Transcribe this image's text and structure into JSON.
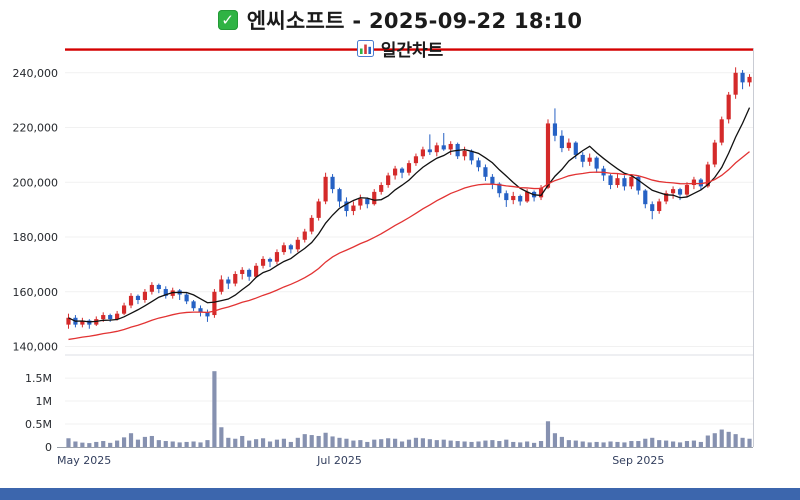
{
  "header": {
    "check_glyph": "✓",
    "title": "엔씨소프트 - 2025-09-22 18:10",
    "subtitle": "일간차트"
  },
  "status_bar": {
    "color": "#3c66ad"
  },
  "chart_data": {
    "type": "candlestick",
    "title": "엔씨소프트 - 2025-09-22 18:10",
    "subtitle": "일간차트",
    "symbol": "엔씨소프트",
    "timestamp": "2025-09-22 18:10",
    "period": "daily",
    "grid": true,
    "legend_position": "none",
    "ylim": [
      138000,
      246500
    ],
    "volume_ylim": [
      0,
      1850000
    ],
    "top_line_price": 248500,
    "y_ticks": [
      {
        "value": 240000,
        "label": "240,000"
      },
      {
        "value": 220000,
        "label": "220,000"
      },
      {
        "value": 200000,
        "label": "200,000"
      },
      {
        "value": 180000,
        "label": "180,000"
      },
      {
        "value": 160000,
        "label": "160,000"
      },
      {
        "value": 140000,
        "label": "140,000"
      }
    ],
    "volume_ticks": [
      {
        "value": 1500000,
        "label": "1.5M"
      },
      {
        "value": 1000000,
        "label": "1M"
      },
      {
        "value": 500000,
        "label": "0.5M"
      },
      {
        "value": 0,
        "label": "0"
      }
    ],
    "x_ticks": [
      {
        "index": 0,
        "label": "May 2025"
      },
      {
        "index": 39,
        "label": "Jul 2025"
      },
      {
        "index": 82,
        "label": "Sep 2025"
      }
    ],
    "colors": {
      "up": "#d42a2a",
      "down": "#2661c4",
      "ma_short": "#111111",
      "ma_long": "#e23333",
      "volume_bar": "#8691b0",
      "top_line": "#d40000",
      "grid": "#f1f1f1",
      "axis": "#9aa0aa",
      "frame": "#c9ccd4"
    },
    "moving_averages": [
      {
        "name": "ma-short",
        "method": "sma",
        "period": 7,
        "color_key": "ma_short"
      },
      {
        "name": "ma-long",
        "method": "ema",
        "alpha": 0.07,
        "seed": 142000,
        "color_key": "ma_long"
      }
    ],
    "candles": {
      "columns": [
        "open",
        "high",
        "low",
        "close",
        "volume"
      ],
      "rows": [
        [
          148000,
          152000,
          146500,
          150500,
          190000
        ],
        [
          150500,
          151500,
          147000,
          148000,
          120000
        ],
        [
          148000,
          150500,
          147000,
          149500,
          95000
        ],
        [
          149500,
          150000,
          146500,
          148000,
          85000
        ],
        [
          148000,
          151000,
          147500,
          150000,
          110000
        ],
        [
          150000,
          152500,
          149000,
          151500,
          130000
        ],
        [
          151500,
          152000,
          149000,
          150000,
          90000
        ],
        [
          150000,
          153000,
          149500,
          152000,
          140000
        ],
        [
          152000,
          156000,
          151500,
          155000,
          210000
        ],
        [
          155000,
          159500,
          154000,
          158500,
          300000
        ],
        [
          158500,
          159000,
          155500,
          157000,
          160000
        ],
        [
          157000,
          161000,
          156000,
          160000,
          220000
        ],
        [
          160000,
          163500,
          159000,
          162500,
          240000
        ],
        [
          162500,
          163000,
          159500,
          161000,
          150000
        ],
        [
          161000,
          162000,
          157500,
          158500,
          130000
        ],
        [
          158500,
          161500,
          157500,
          160500,
          120000
        ],
        [
          160500,
          161000,
          157000,
          159000,
          100000
        ],
        [
          159000,
          159500,
          155500,
          156500,
          110000
        ],
        [
          156500,
          157000,
          153000,
          154000,
          120000
        ],
        [
          154000,
          155000,
          151000,
          152500,
          100000
        ],
        [
          152500,
          153500,
          149000,
          151000,
          150000
        ],
        [
          151500,
          161000,
          150500,
          160000,
          1650000
        ],
        [
          160000,
          166000,
          159000,
          164500,
          430000
        ],
        [
          164500,
          165500,
          161000,
          163000,
          200000
        ],
        [
          163000,
          167500,
          162000,
          166500,
          180000
        ],
        [
          166500,
          169000,
          164500,
          168000,
          240000
        ],
        [
          168000,
          168500,
          164000,
          165500,
          140000
        ],
        [
          165500,
          170500,
          165000,
          169500,
          170000
        ],
        [
          169500,
          173000,
          168500,
          172000,
          190000
        ],
        [
          172000,
          172500,
          169000,
          171000,
          120000
        ],
        [
          171000,
          175500,
          170000,
          174500,
          160000
        ],
        [
          174500,
          178000,
          173500,
          177000,
          180000
        ],
        [
          177000,
          177500,
          174000,
          175500,
          110000
        ],
        [
          175500,
          180000,
          174500,
          179000,
          200000
        ],
        [
          179000,
          183000,
          178000,
          182000,
          280000
        ],
        [
          182000,
          188000,
          181000,
          187000,
          260000
        ],
        [
          187000,
          194000,
          186000,
          193000,
          240000
        ],
        [
          193000,
          203500,
          192000,
          202000,
          310000
        ],
        [
          202000,
          203000,
          196000,
          197500,
          230000
        ],
        [
          197500,
          198000,
          191000,
          193000,
          200000
        ],
        [
          193000,
          194500,
          187500,
          189500,
          180000
        ],
        [
          189500,
          193000,
          188000,
          191500,
          140000
        ],
        [
          191500,
          195500,
          190000,
          194000,
          150000
        ],
        [
          194000,
          194500,
          190500,
          192000,
          110000
        ],
        [
          192000,
          197500,
          191500,
          196500,
          160000
        ],
        [
          196500,
          200000,
          195500,
          199000,
          170000
        ],
        [
          199000,
          203500,
          198000,
          202500,
          190000
        ],
        [
          202500,
          206000,
          201000,
          205000,
          180000
        ],
        [
          205000,
          205500,
          201500,
          203500,
          120000
        ],
        [
          203500,
          208000,
          202500,
          207000,
          160000
        ],
        [
          207000,
          210500,
          206000,
          209500,
          200000
        ],
        [
          209500,
          213000,
          208500,
          212000,
          190000
        ],
        [
          212000,
          217500,
          210000,
          211000,
          170000
        ],
        [
          211000,
          214500,
          209500,
          213500,
          150000
        ],
        [
          213500,
          218000,
          211500,
          212000,
          160000
        ],
        [
          212000,
          215000,
          210000,
          214000,
          140000
        ],
        [
          214000,
          214500,
          208500,
          209500,
          130000
        ],
        [
          209500,
          213000,
          208000,
          211500,
          120000
        ],
        [
          211500,
          212000,
          206500,
          208000,
          110000
        ],
        [
          208000,
          209000,
          204000,
          205500,
          120000
        ],
        [
          205500,
          206500,
          200500,
          202000,
          140000
        ],
        [
          202000,
          203000,
          197500,
          199500,
          150000
        ],
        [
          199500,
          200000,
          194500,
          196000,
          130000
        ],
        [
          196000,
          197000,
          191000,
          193500,
          160000
        ],
        [
          193500,
          196500,
          192000,
          195000,
          110000
        ],
        [
          195000,
          195500,
          191500,
          193000,
          100000
        ],
        [
          193000,
          197500,
          192500,
          196500,
          120000
        ],
        [
          196500,
          197000,
          193000,
          194500,
          90000
        ],
        [
          194500,
          199000,
          193500,
          198000,
          130000
        ],
        [
          198000,
          223000,
          197500,
          221500,
          560000
        ],
        [
          221500,
          227000,
          215000,
          217000,
          300000
        ],
        [
          217000,
          219000,
          211000,
          212500,
          220000
        ],
        [
          212500,
          216000,
          211500,
          214500,
          150000
        ],
        [
          214500,
          215000,
          208500,
          210000,
          140000
        ],
        [
          210000,
          211000,
          205500,
          207500,
          120000
        ],
        [
          207500,
          210500,
          206000,
          209000,
          100000
        ],
        [
          209000,
          209500,
          203500,
          205000,
          110000
        ],
        [
          205000,
          206000,
          200500,
          202500,
          100000
        ],
        [
          202500,
          203000,
          197500,
          199000,
          120000
        ],
        [
          199000,
          203000,
          198000,
          201500,
          110000
        ],
        [
          201500,
          202500,
          197000,
          198500,
          100000
        ],
        [
          198500,
          203000,
          197500,
          202000,
          130000
        ],
        [
          202000,
          202500,
          195500,
          197000,
          130000
        ],
        [
          197000,
          197500,
          190500,
          192000,
          180000
        ],
        [
          192000,
          193000,
          186500,
          189500,
          200000
        ],
        [
          189500,
          194000,
          188500,
          193000,
          150000
        ],
        [
          193000,
          197000,
          192000,
          196000,
          140000
        ],
        [
          196000,
          198500,
          194000,
          197500,
          120000
        ],
        [
          197500,
          198000,
          193500,
          195500,
          100000
        ],
        [
          195500,
          200000,
          194500,
          199000,
          130000
        ],
        [
          199000,
          202000,
          197500,
          201000,
          140000
        ],
        [
          201000,
          201500,
          197000,
          198500,
          110000
        ],
        [
          198500,
          207500,
          198000,
          206500,
          250000
        ],
        [
          206500,
          215500,
          205500,
          214500,
          300000
        ],
        [
          214500,
          224000,
          213500,
          223000,
          380000
        ],
        [
          223000,
          233000,
          221500,
          232000,
          330000
        ],
        [
          232000,
          242000,
          230500,
          240000,
          280000
        ],
        [
          240000,
          241000,
          234000,
          236500,
          200000
        ],
        [
          236500,
          239500,
          235000,
          238500,
          180000
        ]
      ]
    }
  }
}
